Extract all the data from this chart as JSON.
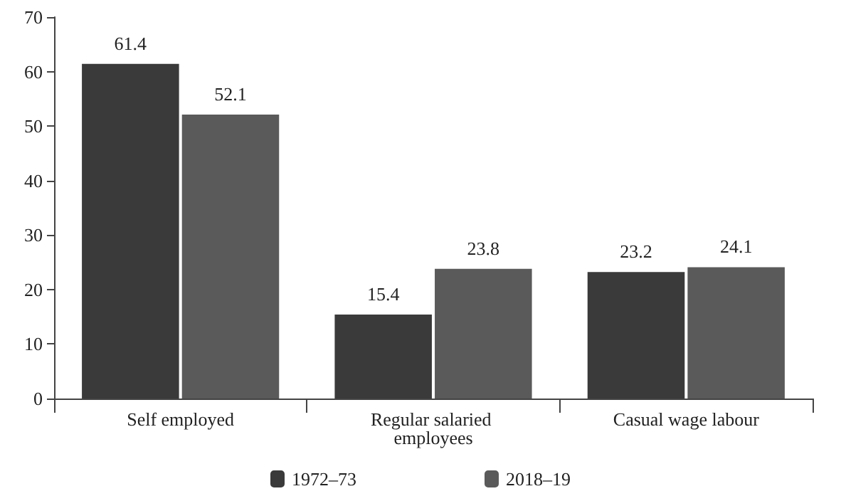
{
  "chart_data": {
    "type": "bar",
    "categories": [
      "Self employed",
      "Regular salaried employees",
      "Casual wage labour"
    ],
    "series": [
      {
        "name": "1972–73",
        "color": "#3a3a3a",
        "values": [
          61.4,
          15.4,
          23.2
        ]
      },
      {
        "name": "2018–19",
        "color": "#5a5a5a",
        "values": [
          52.1,
          23.8,
          24.1
        ]
      }
    ],
    "ylim": [
      0,
      70
    ],
    "yticks": [
      0,
      10,
      20,
      30,
      40,
      50,
      60,
      70
    ],
    "grid": false,
    "legend": "bottom",
    "data_labels": true
  }
}
